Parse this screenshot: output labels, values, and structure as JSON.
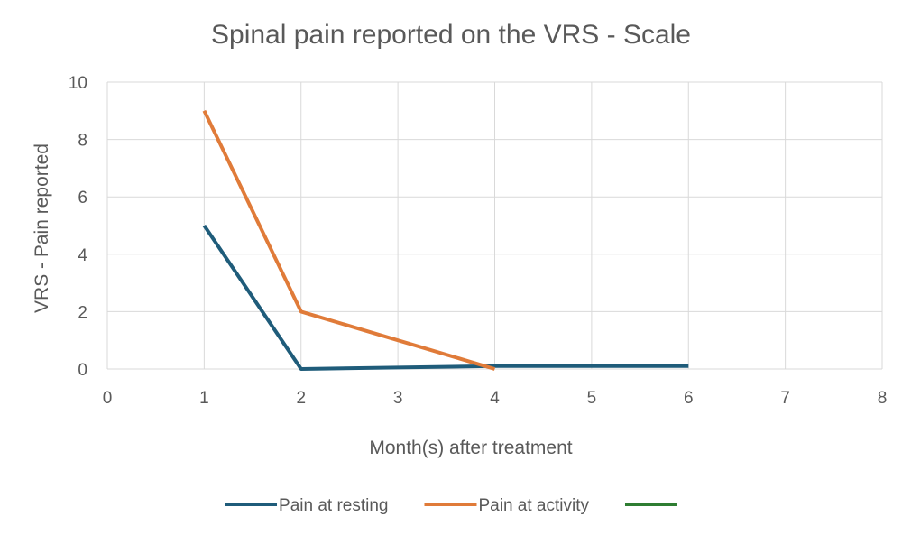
{
  "chart_data": {
    "type": "line",
    "title": "Spinal pain reported on the VRS - Scale",
    "xlabel": "Month(s) after treatment",
    "ylabel": "VRS - Pain reported",
    "xlim": [
      0,
      8
    ],
    "ylim": [
      0,
      10
    ],
    "x_ticks": [
      "0",
      "1",
      "2",
      "3",
      "4",
      "5",
      "6",
      "7",
      "8"
    ],
    "y_ticks": [
      "0",
      "2",
      "4",
      "6",
      "8",
      "10"
    ],
    "grid": true,
    "legend_position": "bottom",
    "series": [
      {
        "name": "Pain at resting",
        "color": "#1f5c7a",
        "points": [
          [
            1,
            5
          ],
          [
            2,
            0
          ],
          [
            4,
            0.1
          ],
          [
            6,
            0.1
          ]
        ]
      },
      {
        "name": "Pain at activity",
        "color": "#e07b39",
        "points": [
          [
            1,
            9
          ],
          [
            2,
            2
          ],
          [
            4,
            0
          ]
        ]
      },
      {
        "name": "",
        "color": "#2e7d32",
        "points": []
      }
    ]
  }
}
